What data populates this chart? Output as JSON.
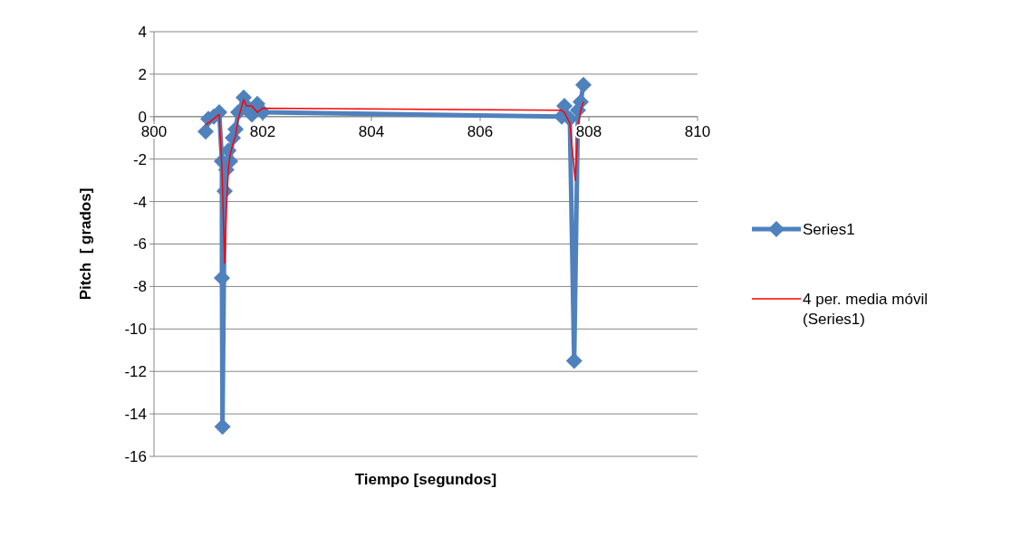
{
  "chart_data": {
    "type": "line",
    "xlabel": "Tiempo [segundos]",
    "ylabel": "Pitch  [ grados]",
    "xlim": [
      800,
      810
    ],
    "xticks": [
      800,
      802,
      804,
      806,
      808,
      810
    ],
    "ylim": [
      -16,
      4
    ],
    "yticks": [
      -16,
      -14,
      -12,
      -10,
      -8,
      -6,
      -4,
      -2,
      0,
      2,
      4
    ],
    "grid": "y",
    "legend": "right",
    "marker": "diamond",
    "series": [
      {
        "name": "Series1",
        "color": "#4f81bd",
        "x": [
          800.95,
          801.0,
          801.1,
          801.2,
          801.25,
          801.25,
          801.26,
          801.3,
          801.33,
          801.37,
          801.4,
          801.45,
          801.5,
          801.55,
          801.65,
          801.7,
          801.8,
          801.9,
          802.0,
          807.5,
          807.55,
          807.65,
          807.73,
          807.8,
          807.85,
          807.9
        ],
        "values": [
          -0.7,
          -0.1,
          0.0,
          0.2,
          -2.1,
          -7.6,
          -14.6,
          -3.5,
          -2.5,
          -1.6,
          -2.1,
          -1.0,
          -0.6,
          0.2,
          0.9,
          0.5,
          0.1,
          0.6,
          0.2,
          0.0,
          0.5,
          -0.1,
          -11.5,
          0.3,
          0.7,
          1.5
        ]
      },
      {
        "name": "4 per. media móvil (Series1)",
        "color": "#ff0000",
        "marker": "none",
        "x": [
          800.95,
          801.1,
          801.2,
          801.25,
          801.3,
          801.33,
          801.37,
          801.4,
          801.45,
          801.5,
          801.55,
          801.65,
          801.7,
          801.8,
          801.9,
          802.0,
          807.5,
          807.55,
          807.65,
          807.75,
          807.8,
          807.85,
          807.9
        ],
        "values": [
          -0.4,
          -0.1,
          0.1,
          -2.4,
          -6.9,
          -4.5,
          -2.4,
          -1.8,
          -1.3,
          -0.9,
          -0.1,
          0.8,
          0.5,
          0.5,
          0.2,
          0.4,
          0.3,
          0.2,
          -0.3,
          -3.0,
          -0.5,
          0.3,
          0.7
        ]
      }
    ]
  }
}
